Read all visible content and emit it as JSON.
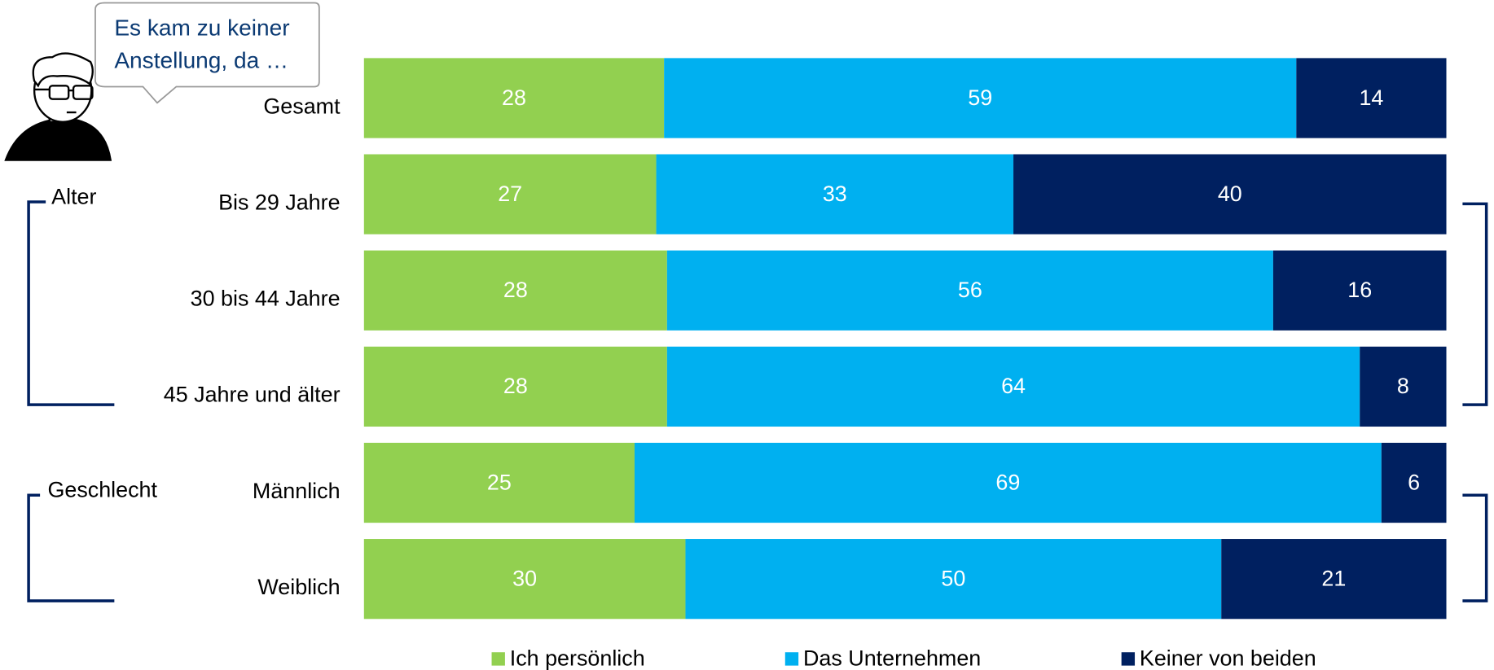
{
  "chart_data": {
    "type": "stacked-bar-100",
    "speech": [
      "Es kam zu keiner",
      "Anstellung, da …"
    ],
    "groups": [
      "Alter",
      "Geschlecht"
    ],
    "categories": [
      "Gesamt",
      "Bis 29 Jahre",
      "30 bis 44 Jahre",
      "45 Jahre und älter",
      "Männlich",
      "Weiblich"
    ],
    "series": [
      {
        "name": "Ich persönlich",
        "color": "#92d050",
        "values": [
          28,
          27,
          28,
          28,
          25,
          30
        ]
      },
      {
        "name": "Das Unternehmen",
        "color": "#00b0f0",
        "values": [
          59,
          33,
          56,
          64,
          69,
          50
        ]
      },
      {
        "name": "Keiner von beiden",
        "color": "#002060",
        "values": [
          14,
          40,
          16,
          8,
          6,
          21
        ]
      }
    ]
  }
}
